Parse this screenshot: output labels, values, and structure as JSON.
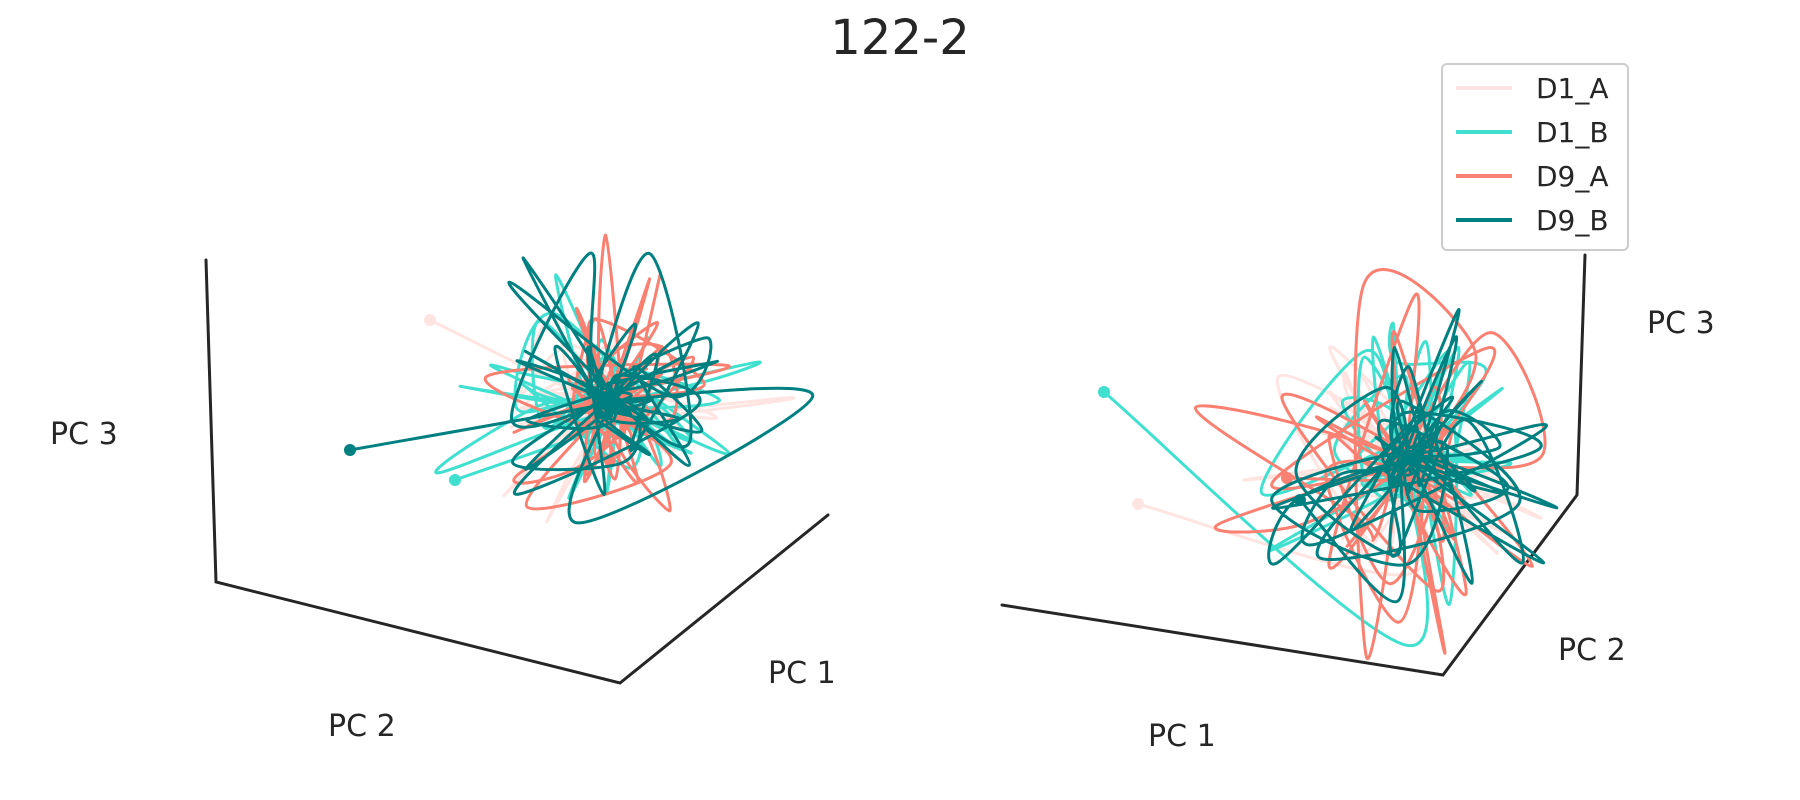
{
  "chart_data": [
    {
      "type": "line3d",
      "title": "122-2",
      "panel": "left",
      "xlabel": "PC 1",
      "ylabel": "PC 2",
      "zlabel": "PC 3",
      "grid": false,
      "view": {
        "elev": 20,
        "azim": -50
      },
      "series": [
        {
          "name": "D1_A",
          "color": "#FFE4E1",
          "start_marker": true,
          "seed": 11,
          "spread": 1.0
        },
        {
          "name": "D1_B",
          "color": "#40E0D0",
          "start_marker": true,
          "seed": 23,
          "spread": 1.0
        },
        {
          "name": "D9_A",
          "color": "#FA8072",
          "start_marker": true,
          "seed": 37,
          "spread": 1.15
        },
        {
          "name": "D9_B",
          "color": "#008080",
          "start_marker": true,
          "seed": 53,
          "spread": 1.2
        }
      ]
    },
    {
      "type": "line3d",
      "title": "122-2",
      "panel": "right",
      "xlabel": "PC 1",
      "ylabel": "PC 2",
      "zlabel": "PC 3",
      "grid": false,
      "view": {
        "elev": 20,
        "azim": -110
      },
      "legend": "top-right",
      "series": [
        {
          "name": "D1_A",
          "color": "#FFE4E1",
          "start_marker": true,
          "seed": 11,
          "spread": 1.0
        },
        {
          "name": "D1_B",
          "color": "#40E0D0",
          "start_marker": true,
          "seed": 23,
          "spread": 1.0
        },
        {
          "name": "D9_A",
          "color": "#FA8072",
          "start_marker": true,
          "seed": 37,
          "spread": 1.15
        },
        {
          "name": "D9_B",
          "color": "#008080",
          "start_marker": true,
          "seed": 53,
          "spread": 1.2
        }
      ]
    }
  ],
  "legend": {
    "entries": [
      {
        "label": "D1_A",
        "color": "#FFE4E1"
      },
      {
        "label": "D1_B",
        "color": "#40E0D0"
      },
      {
        "label": "D9_A",
        "color": "#FA8072"
      },
      {
        "label": "D9_B",
        "color": "#008080"
      }
    ]
  }
}
